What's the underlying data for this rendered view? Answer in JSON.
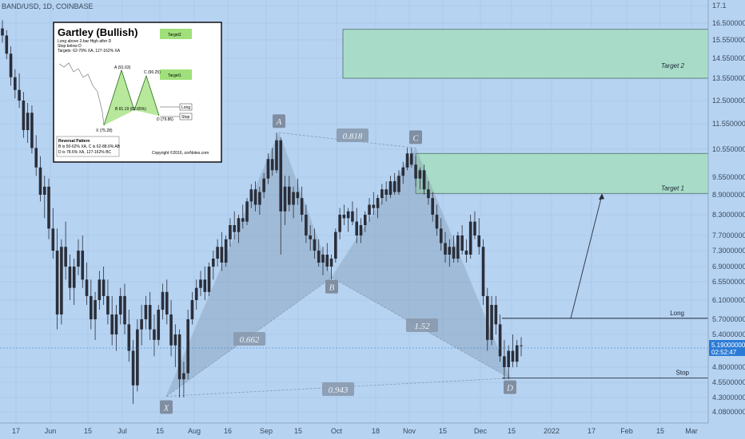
{
  "header": {
    "symbol_line": "BAND/USD, 1D, COINBASE"
  },
  "chart_data": {
    "type": "candlestick",
    "title": "BAND/USD, 1D, COINBASE",
    "price_axis": {
      "ticks": [
        "17.1",
        "16.50000000",
        "15.55000000",
        "14.55000000",
        "13.55000000",
        "12.50000000",
        "11.55000000",
        "10.55000000",
        "9.55000000",
        "8.90000000",
        "8.30000000",
        "7.70000000",
        "7.30000000",
        "6.90000000",
        "6.55000000",
        "6.10000000",
        "5.70000000",
        "5.40000000",
        "4.80000000",
        "4.55000000",
        "4.30000000",
        "4.08000000"
      ],
      "last_price": "5.19000000",
      "countdown": "02:52:47"
    },
    "time_axis": {
      "ticks": [
        "17",
        "Jun",
        "15",
        "Jul",
        "15",
        "Aug",
        "16",
        "Sep",
        "15",
        "Oct",
        "18",
        "Nov",
        "15",
        "Dec",
        "15",
        "2022",
        "17",
        "Feb",
        "15",
        "Mar"
      ]
    },
    "pattern": {
      "name": "Gartley (Bullish)",
      "points": [
        {
          "label": "X",
          "price": 4.32
        },
        {
          "label": "A",
          "price": 11.2
        },
        {
          "label": "B",
          "price": 6.65
        },
        {
          "label": "C",
          "price": 10.6
        },
        {
          "label": "D",
          "price": 4.62
        }
      ],
      "ratios": [
        "0.818",
        "0.662",
        "1.52",
        "0.943"
      ]
    },
    "levels": [
      {
        "label": "Target 2",
        "from": 13.55,
        "to": 16.15
      },
      {
        "label": "Target 1",
        "from": 8.95,
        "to": 10.4
      },
      {
        "label": "Long",
        "price": 5.72
      },
      {
        "label": "Stop",
        "price": 4.62
      }
    ],
    "series": [
      {
        "name": "BAND/USD",
        "ohlc": [
          [
            16.2,
            16.6,
            15.4,
            15.8
          ],
          [
            15.8,
            16.1,
            14.5,
            14.8
          ],
          [
            14.8,
            15.2,
            13.2,
            13.6
          ],
          [
            13.6,
            14.0,
            12.6,
            13.0
          ],
          [
            13.0,
            13.8,
            12.2,
            12.5
          ],
          [
            12.5,
            12.9,
            11.0,
            11.3
          ],
          [
            11.3,
            12.4,
            10.8,
            12.0
          ],
          [
            12.0,
            12.3,
            10.4,
            10.6
          ],
          [
            10.6,
            11.1,
            9.6,
            9.9
          ],
          [
            9.9,
            10.3,
            8.7,
            8.9
          ],
          [
            8.9,
            9.6,
            8.2,
            9.2
          ],
          [
            9.2,
            9.5,
            7.6,
            7.9
          ],
          [
            7.9,
            8.5,
            7.1,
            7.3
          ],
          [
            7.3,
            7.9,
            5.5,
            5.8
          ],
          [
            5.8,
            7.6,
            5.6,
            7.4
          ],
          [
            7.4,
            8.1,
            6.6,
            6.9
          ],
          [
            6.9,
            7.2,
            6.1,
            6.4
          ],
          [
            6.4,
            7.1,
            6.0,
            6.9
          ],
          [
            6.9,
            7.6,
            6.7,
            7.3
          ],
          [
            7.3,
            7.7,
            6.4,
            6.6
          ],
          [
            6.6,
            7.0,
            6.0,
            6.2
          ],
          [
            6.2,
            6.6,
            5.5,
            5.7
          ],
          [
            5.7,
            6.3,
            5.3,
            6.1
          ],
          [
            6.1,
            6.8,
            5.9,
            6.6
          ],
          [
            6.6,
            6.9,
            6.0,
            6.2
          ],
          [
            6.2,
            6.6,
            5.6,
            5.8
          ],
          [
            5.8,
            6.2,
            5.2,
            5.4
          ],
          [
            5.4,
            6.0,
            5.1,
            5.8
          ],
          [
            5.8,
            6.4,
            5.6,
            6.2
          ],
          [
            6.2,
            6.5,
            5.4,
            5.6
          ],
          [
            5.6,
            5.9,
            4.9,
            5.1
          ],
          [
            5.1,
            5.3,
            4.2,
            4.5
          ],
          [
            4.5,
            5.7,
            4.4,
            5.5
          ],
          [
            5.5,
            6.0,
            5.2,
            5.7
          ],
          [
            5.7,
            6.2,
            5.5,
            6.0
          ],
          [
            6.0,
            6.3,
            5.3,
            5.5
          ],
          [
            5.5,
            5.8,
            5.0,
            5.3
          ],
          [
            5.3,
            6.0,
            5.2,
            5.9
          ],
          [
            5.9,
            6.5,
            5.7,
            6.3
          ],
          [
            6.3,
            6.6,
            5.6,
            5.8
          ],
          [
            5.8,
            6.1,
            5.0,
            5.2
          ],
          [
            5.2,
            5.6,
            4.8,
            5.4
          ],
          [
            5.4,
            5.5,
            4.3,
            4.6
          ],
          [
            4.6,
            4.9,
            4.3,
            4.7
          ],
          [
            4.7,
            5.9,
            4.6,
            5.7
          ],
          [
            5.7,
            6.3,
            5.6,
            6.1
          ],
          [
            6.1,
            6.6,
            5.9,
            6.4
          ],
          [
            6.4,
            6.8,
            6.2,
            6.6
          ],
          [
            6.6,
            6.9,
            6.1,
            6.3
          ],
          [
            6.3,
            7.0,
            6.2,
            6.9
          ],
          [
            6.9,
            7.3,
            6.6,
            7.1
          ],
          [
            7.1,
            7.6,
            6.9,
            7.4
          ],
          [
            7.4,
            7.8,
            6.8,
            7.0
          ],
          [
            7.0,
            7.7,
            6.9,
            7.6
          ],
          [
            7.6,
            8.2,
            7.4,
            8.0
          ],
          [
            8.0,
            8.4,
            7.6,
            7.8
          ],
          [
            7.8,
            8.3,
            7.5,
            8.2
          ],
          [
            8.2,
            8.6,
            7.9,
            8.1
          ],
          [
            8.1,
            8.8,
            8.0,
            8.7
          ],
          [
            8.7,
            9.3,
            8.5,
            9.1
          ],
          [
            9.1,
            9.4,
            8.4,
            8.6
          ],
          [
            8.6,
            9.2,
            8.3,
            9.0
          ],
          [
            9.0,
            9.7,
            8.8,
            9.5
          ],
          [
            9.5,
            10.4,
            9.3,
            10.2
          ],
          [
            10.2,
            10.6,
            9.6,
            9.8
          ],
          [
            9.8,
            11.2,
            9.7,
            10.9
          ],
          [
            10.9,
            11.0,
            7.2,
            8.4
          ],
          [
            8.4,
            9.6,
            8.0,
            9.2
          ],
          [
            9.2,
            9.6,
            8.4,
            8.6
          ],
          [
            8.6,
            9.2,
            8.2,
            9.0
          ],
          [
            9.0,
            9.5,
            8.6,
            8.8
          ],
          [
            8.8,
            9.2,
            8.1,
            8.3
          ],
          [
            8.3,
            8.6,
            7.5,
            7.7
          ],
          [
            7.7,
            8.0,
            7.3,
            7.6
          ],
          [
            7.6,
            7.9,
            7.1,
            7.3
          ],
          [
            7.3,
            7.6,
            6.9,
            7.0
          ],
          [
            7.0,
            7.4,
            6.7,
            7.2
          ],
          [
            7.2,
            7.5,
            6.8,
            6.9
          ],
          [
            6.9,
            7.2,
            6.6,
            7.1
          ],
          [
            7.1,
            7.9,
            7.0,
            7.8
          ],
          [
            7.8,
            8.5,
            7.6,
            8.3
          ],
          [
            8.3,
            8.6,
            8.0,
            8.2
          ],
          [
            8.2,
            8.5,
            7.8,
            8.4
          ],
          [
            8.4,
            8.7,
            8.0,
            8.1
          ],
          [
            8.1,
            8.5,
            7.5,
            7.7
          ],
          [
            7.7,
            8.2,
            7.5,
            8.0
          ],
          [
            8.0,
            8.4,
            7.8,
            8.3
          ],
          [
            8.3,
            8.8,
            8.1,
            8.6
          ],
          [
            8.6,
            9.0,
            8.3,
            8.5
          ],
          [
            8.5,
            8.9,
            8.2,
            8.8
          ],
          [
            8.8,
            9.3,
            8.6,
            9.1
          ],
          [
            9.1,
            9.4,
            8.7,
            8.9
          ],
          [
            8.9,
            9.6,
            8.8,
            9.4
          ],
          [
            9.4,
            9.7,
            8.9,
            9.0
          ],
          [
            9.0,
            9.8,
            8.9,
            9.6
          ],
          [
            9.6,
            10.1,
            9.3,
            9.9
          ],
          [
            9.9,
            10.6,
            9.8,
            10.4
          ],
          [
            10.4,
            10.6,
            9.9,
            10.0
          ],
          [
            10.0,
            10.3,
            9.2,
            9.5
          ],
          [
            9.5,
            9.9,
            9.1,
            9.8
          ],
          [
            9.8,
            10.0,
            8.9,
            9.1
          ],
          [
            9.1,
            9.4,
            8.6,
            8.8
          ],
          [
            8.8,
            9.0,
            8.1,
            8.3
          ],
          [
            8.3,
            8.6,
            7.7,
            7.9
          ],
          [
            7.9,
            8.2,
            7.3,
            7.5
          ],
          [
            7.5,
            7.8,
            7.0,
            7.2
          ],
          [
            7.2,
            7.6,
            6.9,
            7.4
          ],
          [
            7.4,
            7.7,
            7.0,
            7.1
          ],
          [
            7.1,
            7.8,
            7.0,
            7.7
          ],
          [
            7.7,
            8.0,
            7.2,
            7.3
          ],
          [
            7.3,
            7.6,
            7.0,
            7.2
          ],
          [
            7.2,
            8.3,
            7.1,
            8.1
          ],
          [
            8.1,
            8.4,
            7.6,
            7.7
          ],
          [
            7.7,
            8.2,
            7.2,
            7.4
          ],
          [
            7.4,
            7.6,
            6.0,
            6.2
          ],
          [
            6.2,
            6.4,
            5.1,
            5.3
          ],
          [
            5.3,
            6.2,
            5.2,
            6.0
          ],
          [
            6.0,
            6.2,
            5.4,
            5.6
          ],
          [
            5.6,
            5.8,
            4.9,
            5.0
          ],
          [
            5.0,
            5.3,
            4.6,
            4.8
          ],
          [
            4.8,
            5.2,
            4.6,
            5.1
          ],
          [
            5.1,
            5.4,
            4.8,
            4.9
          ],
          [
            4.9,
            5.3,
            4.8,
            5.2
          ],
          [
            5.2,
            5.35,
            5.0,
            5.19
          ]
        ]
      }
    ]
  },
  "inset": {
    "title": "Gartley (Bullish)",
    "rules": [
      "Long above 2-bar High after D",
      "Stop below D",
      "Targets: 62-79% XA, 127-162% XA"
    ],
    "points": [
      "A (91.63)",
      "C (90.25)",
      "B 81.19 (62.65%)",
      "X (75.28)",
      "D (79.86)"
    ],
    "targets": [
      "Target2",
      "Target1"
    ],
    "level_labels": [
      "Long",
      "Stop"
    ],
    "footer_title": "Reversal Pattern",
    "footer_lines": [
      "B is 50-62% XA, C is 62-88.6% AB",
      "D is 78.6% XA, 127-162% BC"
    ],
    "copyright": "Copyright ©2016, zorNotes.com"
  }
}
